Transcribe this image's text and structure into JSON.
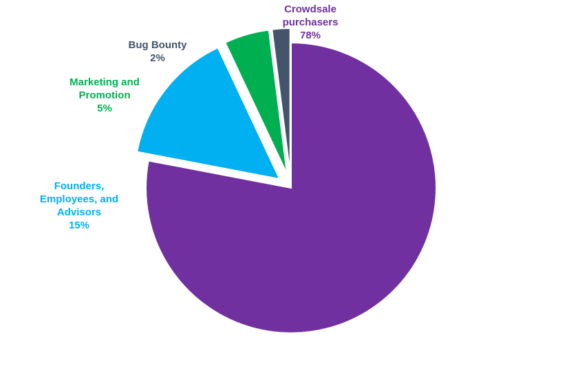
{
  "chart_data": {
    "type": "pie",
    "title": "",
    "start_angle_deg": 90,
    "direction": "clockwise",
    "slices": [
      {
        "label_lines": [
          "Crowdsale",
          "purchasers"
        ],
        "value": 78,
        "value_label": "78%",
        "color": "#7030A0",
        "exploded": false
      },
      {
        "label_lines": [
          "Founders,",
          "Employees, and",
          "Advisors"
        ],
        "value": 15,
        "value_label": "15%",
        "color": "#00B0F0",
        "exploded": true
      },
      {
        "label_lines": [
          "Marketing and",
          "Promotion"
        ],
        "value": 5,
        "value_label": "5%",
        "color": "#00B050",
        "exploded": true
      },
      {
        "label_lines": [
          "Bug Bounty"
        ],
        "value": 2,
        "value_label": "2%",
        "color": "#44546A",
        "exploded": true
      }
    ]
  }
}
